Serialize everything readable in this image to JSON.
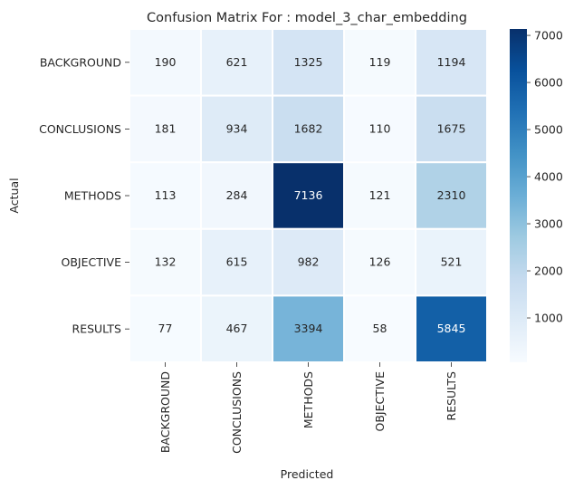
{
  "chart_data": {
    "type": "heatmap",
    "title": "Confusion Matrix For : model_3_char_embedding",
    "xlabel": "Predicted",
    "ylabel": "Actual",
    "x_categories": [
      "BACKGROUND",
      "CONCLUSIONS",
      "METHODS",
      "OBJECTIVE",
      "RESULTS"
    ],
    "y_categories": [
      "BACKGROUND",
      "CONCLUSIONS",
      "METHODS",
      "OBJECTIVE",
      "RESULTS"
    ],
    "values": [
      [
        190,
        621,
        1325,
        119,
        1194
      ],
      [
        181,
        934,
        1682,
        110,
        1675
      ],
      [
        113,
        284,
        7136,
        121,
        2310
      ],
      [
        132,
        615,
        982,
        126,
        521
      ],
      [
        77,
        467,
        3394,
        58,
        5845
      ]
    ],
    "colorbar": {
      "colormap": "Blues",
      "vmin": 58,
      "vmax": 7136,
      "ticks": [
        1000,
        2000,
        3000,
        4000,
        5000,
        6000,
        7000
      ],
      "tick_labels": [
        "1000",
        "2000",
        "3000",
        "4000",
        "5000",
        "6000",
        "7000"
      ]
    }
  }
}
